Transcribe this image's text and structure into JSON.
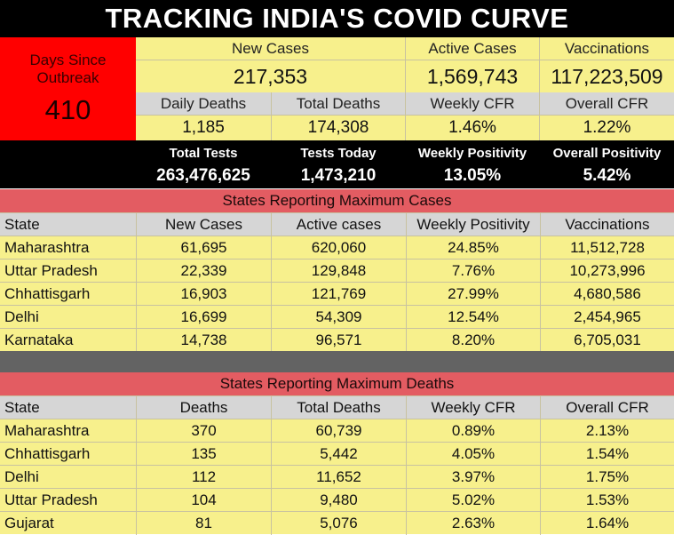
{
  "title": "TRACKING INDIA'S COVID CURVE",
  "days_since_outbreak": {
    "label": "Days Since Outbreak",
    "value": "410"
  },
  "summary_row1": [
    {
      "label": "New Cases",
      "value": "217,353"
    },
    {
      "label": "Active Cases",
      "value": "1,569,743"
    },
    {
      "label": "Vaccinations",
      "value": "117,223,509"
    }
  ],
  "summary_row2": [
    {
      "label": "Daily Deaths",
      "value": "1,185"
    },
    {
      "label": "Total Deaths",
      "value": "174,308"
    },
    {
      "label": "Weekly CFR",
      "value": "1.46%"
    },
    {
      "label": "Overall CFR",
      "value": "1.22%"
    }
  ],
  "summary_row3": [
    {
      "label": "Total Tests",
      "value": "263,476,625"
    },
    {
      "label": "Tests Today",
      "value": "1,473,210"
    },
    {
      "label": "Weekly Positivity",
      "value": "13.05%"
    },
    {
      "label": "Overall Positivity",
      "value": "5.42%"
    }
  ],
  "cases_table": {
    "title": "States Reporting Maximum Cases",
    "headers": [
      "State",
      "New Cases",
      "Active cases",
      "Weekly Positivity",
      "Vaccinations"
    ],
    "rows": [
      [
        "Maharashtra",
        "61,695",
        "620,060",
        "24.85%",
        "11,512,728"
      ],
      [
        "Uttar Pradesh",
        "22,339",
        "129,848",
        "7.76%",
        "10,273,996"
      ],
      [
        "Chhattisgarh",
        "16,903",
        "121,769",
        "27.99%",
        "4,680,586"
      ],
      [
        "Delhi",
        "16,699",
        "54,309",
        "12.54%",
        "2,454,965"
      ],
      [
        "Karnataka",
        "14,738",
        "96,571",
        "8.20%",
        "6,705,031"
      ]
    ]
  },
  "deaths_table": {
    "title": "States Reporting Maximum Deaths",
    "headers": [
      "State",
      "Deaths",
      "Total Deaths",
      "Weekly CFR",
      "Overall CFR"
    ],
    "rows": [
      [
        "Maharashtra",
        "370",
        "60,739",
        "0.89%",
        "2.13%"
      ],
      [
        "Chhattisgarh",
        "135",
        "5,442",
        "4.05%",
        "1.54%"
      ],
      [
        "Delhi",
        "112",
        "11,652",
        "3.97%",
        "1.75%"
      ],
      [
        "Uttar Pradesh",
        "104",
        "9,480",
        "5.02%",
        "1.53%"
      ],
      [
        "Gujarat",
        "81",
        "5,076",
        "2.63%",
        "1.64%"
      ]
    ]
  },
  "colors": {
    "yellow": "#f7f08c",
    "grey": "#d6d6d6",
    "red": "#ff0000",
    "pink": "#e35c62",
    "black": "#000000",
    "separator": "#636363"
  }
}
